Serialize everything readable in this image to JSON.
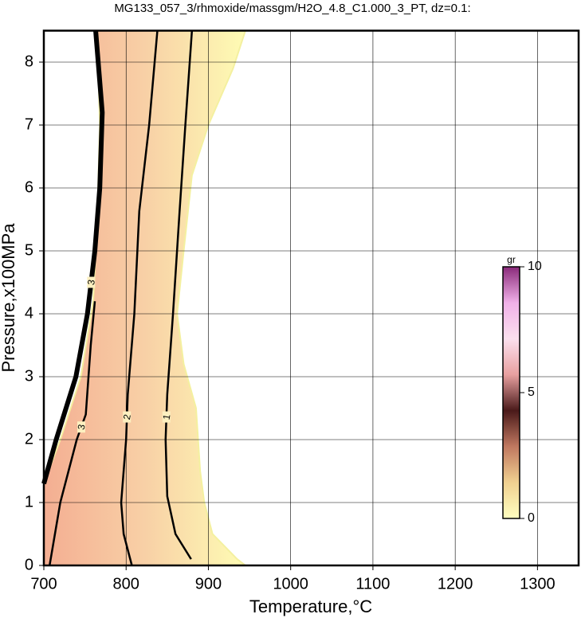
{
  "chart_data": {
    "type": "contour",
    "title": "MG133_057_3/rhmoxide/massgm/H2O_4.8_C1.000_3_PT, dz=0.1:",
    "x_label": "Temperature,°C",
    "y_label": "Pressure,x100MPa",
    "xlim": [
      700,
      1350
    ],
    "xticks": [
      700,
      800,
      900,
      1000,
      1100,
      1200,
      1300
    ],
    "ylim": [
      0,
      8.5
    ],
    "yticks": [
      0,
      1,
      2,
      3,
      4,
      5,
      6,
      7,
      8
    ],
    "grid": true,
    "region": {
      "colors": [
        "#f4ae92",
        "#f8d0a6",
        "#fefcb4"
      ],
      "x": [
        700,
        700,
        720,
        745,
        760,
        765,
        768,
        765,
        945,
        930,
        900,
        880,
        870,
        862,
        870,
        885,
        890,
        895,
        905,
        935,
        945
      ],
      "y": [
        0,
        1.3,
        2.0,
        3.0,
        4.2,
        5.5,
        7,
        8.5,
        8.5,
        7.9,
        7.0,
        6.2,
        5.0,
        4.0,
        3.2,
        2.5,
        1.5,
        1.0,
        0.5,
        0.1,
        0
      ]
    },
    "series": [
      {
        "name": "3",
        "color": "#000000",
        "width": 6,
        "x": [
          700,
          715,
          739,
          753,
          762,
          768,
          771,
          763
        ],
        "y": [
          1.3,
          2,
          3,
          4,
          5,
          6,
          7.2,
          8.5
        ]
      },
      {
        "name": "3",
        "color": "#000000",
        "width": 2.5,
        "x": [
          707,
          720,
          740,
          751,
          757,
          762
        ],
        "y": [
          0,
          1,
          2,
          2.4,
          3.5,
          4.2
        ]
      },
      {
        "name": "2",
        "color": "#000000",
        "width": 2.5,
        "x": [
          807,
          797,
          794,
          800,
          802,
          810,
          816,
          828,
          838
        ],
        "y": [
          0,
          0.5,
          1,
          2,
          2.72,
          4,
          5.63,
          7,
          8.5
        ]
      },
      {
        "name": "1",
        "color": "#000000",
        "width": 2.5,
        "x": [
          879,
          860,
          850,
          848,
          850,
          857,
          865,
          872,
          880
        ],
        "y": [
          0.1,
          0.5,
          1.1,
          2,
          2.72,
          4,
          5.63,
          7,
          8.5
        ]
      }
    ],
    "colorbar": {
      "label": "gr",
      "lim": [
        0,
        10
      ],
      "ticks": [
        0,
        5,
        10
      ],
      "colors": [
        "#ffffc0",
        "#f0d090",
        "#c07860",
        "#4a1a1a",
        "#e8a0a0",
        "#fbe0ee",
        "#f0b0e8",
        "#8a2a7a"
      ]
    }
  }
}
